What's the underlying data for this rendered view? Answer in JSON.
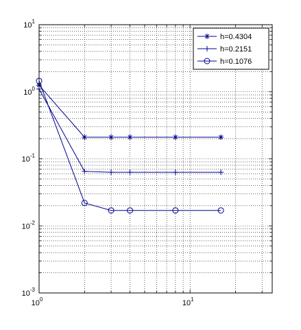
{
  "chart_data": {
    "type": "line",
    "xscale": "log",
    "yscale": "log",
    "xlim": [
      1,
      35
    ],
    "ylim": [
      0.001,
      10
    ],
    "grid": true,
    "legend_position": "top-right",
    "x_ticks": [
      {
        "value": 1,
        "base": "10",
        "exp": "0"
      },
      {
        "value": 10,
        "base": "10",
        "exp": "1"
      }
    ],
    "y_ticks": [
      {
        "value": 10,
        "base": "10",
        "exp": "1"
      },
      {
        "value": 1,
        "base": "10",
        "exp": "0"
      },
      {
        "value": 0.1,
        "base": "10",
        "exp": "-1"
      },
      {
        "value": 0.01,
        "base": "10",
        "exp": "-2"
      },
      {
        "value": 0.001,
        "base": "10",
        "exp": "-3"
      }
    ],
    "line_color": "#00008f",
    "series": [
      {
        "name": "h=0.4304",
        "marker": "asterisk",
        "x": [
          1,
          2,
          3,
          4,
          8,
          16
        ],
        "y": [
          1.25,
          0.21,
          0.21,
          0.21,
          0.21,
          0.21
        ]
      },
      {
        "name": "h=0.2151",
        "marker": "plus",
        "x": [
          1,
          2,
          3,
          4,
          8,
          16
        ],
        "y": [
          1.1,
          0.065,
          0.063,
          0.063,
          0.063,
          0.063
        ]
      },
      {
        "name": "h=0.1076",
        "marker": "circle",
        "x": [
          1,
          2,
          3,
          4,
          8,
          16
        ],
        "y": [
          1.45,
          0.022,
          0.017,
          0.017,
          0.017,
          0.017
        ]
      }
    ]
  }
}
